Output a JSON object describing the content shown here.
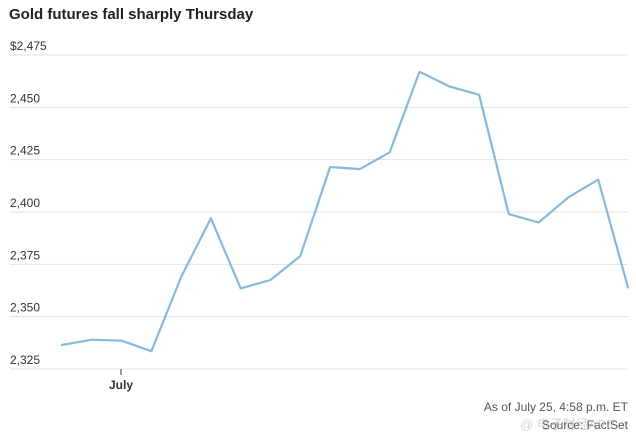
{
  "chart_data": {
    "type": "line",
    "title": "Gold futures fall sharply Thursday",
    "xlabel": "",
    "ylabel": "",
    "x_tick_labels": [
      "July"
    ],
    "y_tick_labels": [
      "$2,475",
      "2,450",
      "2,425",
      "2,400",
      "2,375",
      "2,350",
      "2,325"
    ],
    "y_tick_values": [
      2475,
      2450,
      2425,
      2400,
      2375,
      2350,
      2325
    ],
    "ylim": [
      2320,
      2480
    ],
    "grid": true,
    "series": [
      {
        "color": "#85b9dd",
        "values": [
          2336.5,
          2339,
          2338.5,
          2333.5,
          2369,
          2397,
          2363.5,
          2367.5,
          2379,
          2421.5,
          2420.5,
          2428.5,
          2467,
          2460,
          2456,
          2399,
          2395,
          2407,
          2415.5,
          2364
        ]
      }
    ]
  },
  "footer": {
    "as_of": "As of July 25, 4:58 p.m. ET",
    "source": "Source: FactSet"
  },
  "watermark": {
    "text": "@ 电子财经APP"
  }
}
